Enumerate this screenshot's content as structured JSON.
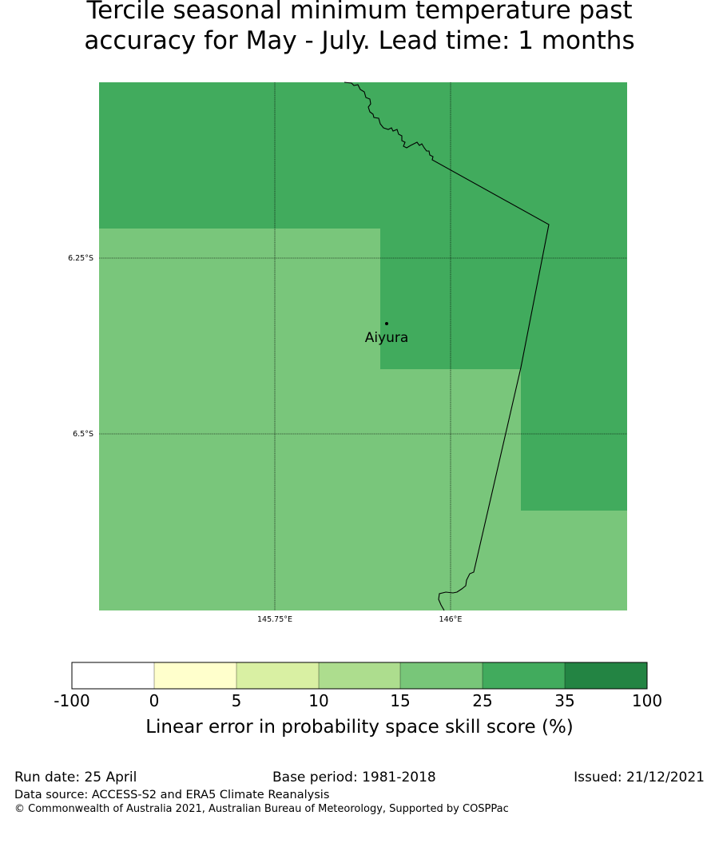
{
  "title": {
    "line1": "Tercile seasonal minimum temperature past",
    "line2": "accuracy for May - July. Lead time: 1 months"
  },
  "map": {
    "lat_labels": [
      "6.25°S",
      "6.5°S"
    ],
    "lon_labels": [
      "145.75°E",
      "146°E"
    ],
    "place": {
      "name": "Aiyura"
    },
    "colors": {
      "medium": "#79c67b",
      "dark": "#41ab5d"
    }
  },
  "colorbar": {
    "label": "Linear error in probability space skill score (%)",
    "ticks": [
      "-100",
      "0",
      "5",
      "10",
      "15",
      "25",
      "35",
      "100"
    ],
    "colors": [
      "#ffffff",
      "#ffffcc",
      "#d9f0a3",
      "#addd8e",
      "#78c679",
      "#41ab5d",
      "#238443"
    ]
  },
  "footer": {
    "run_date": "Run date: 25 April",
    "base_period": "Base period: 1981-2018",
    "issued": "Issued: 21/12/2021",
    "data_source": "Data source: ACCESS-S2 and ERA5 Climate Reanalysis",
    "copyright": "© Commonwealth of Australia 2021, Australian Bureau of Meteorology, Supported by COSPPac"
  }
}
